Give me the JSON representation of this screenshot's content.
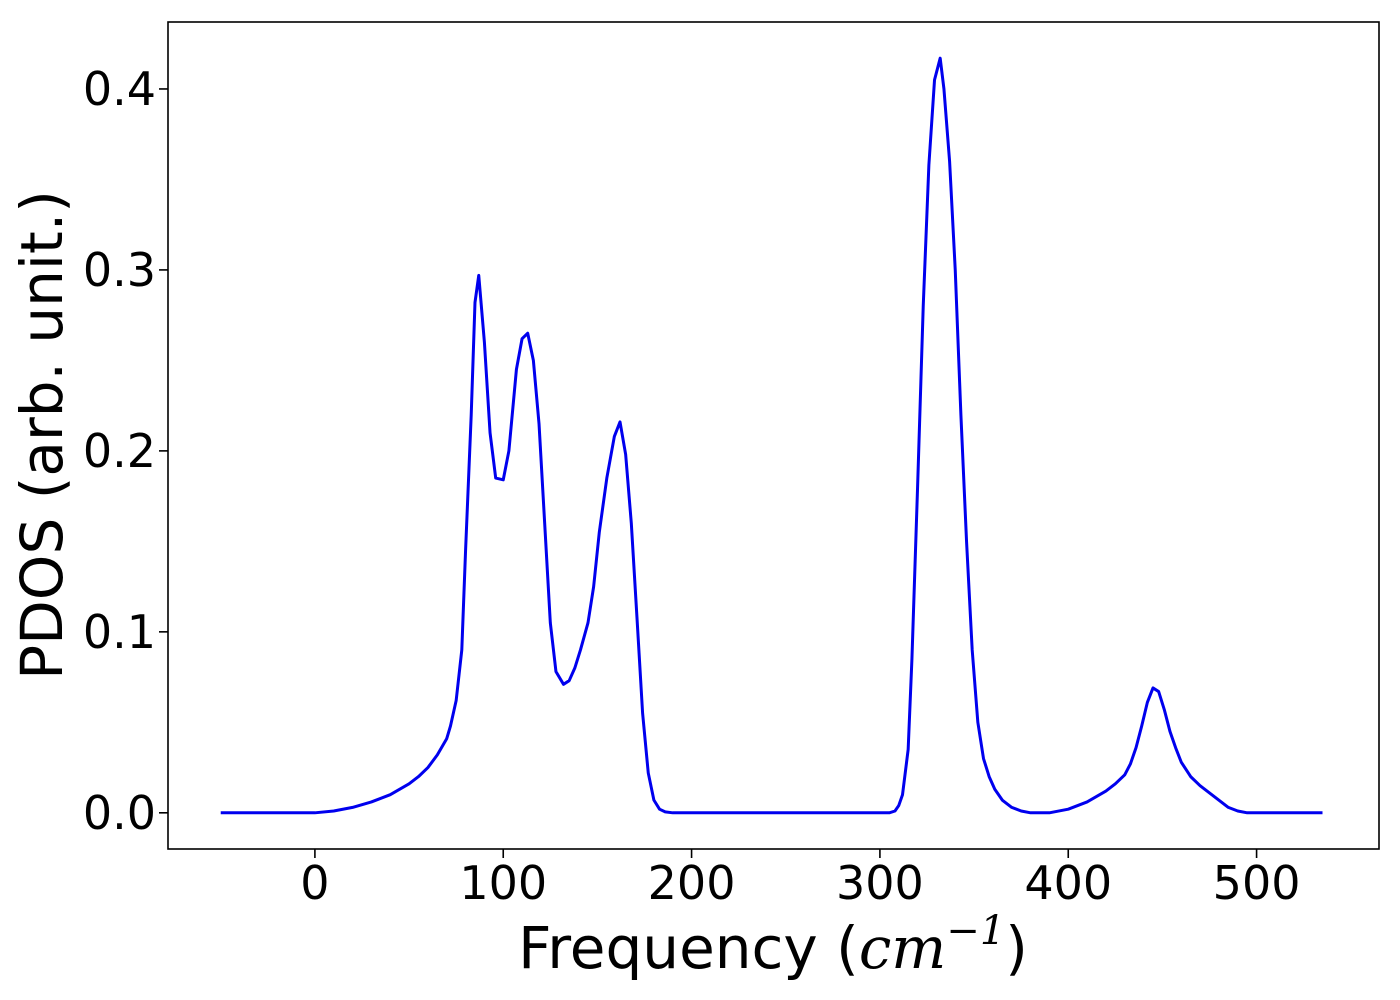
{
  "chart_data": {
    "type": "line",
    "title": "",
    "xlabel": "Frequency",
    "xlabel_unit_base": "cm",
    "xlabel_unit_exp": "−1",
    "ylabel": "PDOS (arb. unit.)",
    "xlim": [
      -78,
      565
    ],
    "ylim": [
      -0.02,
      0.437
    ],
    "xticks": [
      0,
      100,
      200,
      300,
      400,
      500
    ],
    "xtick_labels": [
      "0",
      "100",
      "200",
      "300",
      "400",
      "500"
    ],
    "yticks": [
      0.0,
      0.1,
      0.2,
      0.3,
      0.4
    ],
    "ytick_labels": [
      "0.0",
      "0.1",
      "0.2",
      "0.3",
      "0.4"
    ],
    "grid": false,
    "legend": "none",
    "series": [
      {
        "color": "#0000ee",
        "x": [
          -50,
          -25,
          0,
          10,
          20,
          30,
          40,
          50,
          55,
          60,
          65,
          70,
          72,
          75,
          78,
          80,
          83,
          85,
          87,
          90,
          93,
          96,
          100,
          103,
          107,
          110,
          113,
          116,
          119,
          122,
          125,
          128,
          132,
          135,
          138,
          141,
          145,
          148,
          151,
          155,
          159,
          162,
          165,
          168,
          171,
          174,
          177,
          180,
          183,
          186,
          190,
          200,
          250,
          300,
          305,
          308,
          310,
          312,
          315,
          317,
          320,
          323,
          326,
          329,
          332,
          334,
          337,
          340,
          343,
          346,
          349,
          352,
          355,
          358,
          361,
          365,
          370,
          375,
          380,
          385,
          390,
          400,
          410,
          420,
          425,
          430,
          433,
          436,
          439,
          442,
          445,
          448,
          451,
          454,
          457,
          460,
          465,
          470,
          475,
          480,
          485,
          490,
          495,
          500,
          510,
          520,
          535
        ],
        "y": [
          0,
          0,
          0,
          0.001,
          0.003,
          0.006,
          0.01,
          0.016,
          0.02,
          0.025,
          0.032,
          0.041,
          0.048,
          0.062,
          0.09,
          0.145,
          0.22,
          0.282,
          0.297,
          0.26,
          0.21,
          0.185,
          0.184,
          0.2,
          0.245,
          0.262,
          0.265,
          0.25,
          0.215,
          0.16,
          0.105,
          0.078,
          0.071,
          0.073,
          0.08,
          0.09,
          0.105,
          0.125,
          0.155,
          0.185,
          0.208,
          0.216,
          0.198,
          0.16,
          0.108,
          0.055,
          0.022,
          0.007,
          0.002,
          0.0005,
          0,
          0,
          0,
          0,
          0,
          0.001,
          0.004,
          0.01,
          0.035,
          0.085,
          0.18,
          0.28,
          0.358,
          0.405,
          0.417,
          0.4,
          0.36,
          0.3,
          0.22,
          0.15,
          0.09,
          0.05,
          0.03,
          0.02,
          0.013,
          0.007,
          0.003,
          0.001,
          0,
          0,
          0,
          0.002,
          0.006,
          0.012,
          0.016,
          0.021,
          0.027,
          0.036,
          0.048,
          0.061,
          0.069,
          0.067,
          0.057,
          0.045,
          0.036,
          0.028,
          0.02,
          0.015,
          0.011,
          0.007,
          0.003,
          0.001,
          0,
          0,
          0,
          0,
          0
        ]
      }
    ]
  }
}
